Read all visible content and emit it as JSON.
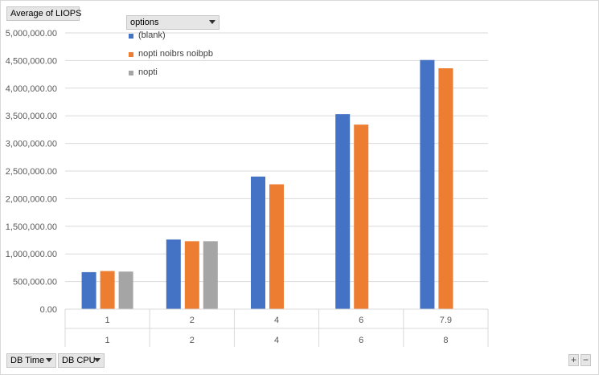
{
  "field_buttons": {
    "value_field": "Average of LIOPS",
    "legend_field": "options",
    "axis_fields": [
      "DB Time",
      "DB CPU"
    ]
  },
  "corner_buttons": {
    "expand": "+",
    "collapse": "−"
  },
  "colors": {
    "blank": "#4472c4",
    "nopti_noibrs_noibpb": "#ed7d31",
    "nopti": "#a5a5a5",
    "grid": "#d9d9d9",
    "axis_text": "#595959"
  },
  "chart_data": {
    "type": "bar",
    "title": "",
    "xlabel": "",
    "ylabel": "",
    "ylim": [
      0,
      5000000
    ],
    "y_ticks": [
      "0.00",
      "500,000.00",
      "1,000,000.00",
      "1,500,000.00",
      "2,000,000.00",
      "2,500,000.00",
      "3,000,000.00",
      "3,500,000.00",
      "4,000,000.00",
      "4,500,000.00",
      "5,000,000.00"
    ],
    "categories": [
      "1",
      "2",
      "4",
      "6",
      "7.9"
    ],
    "category_groups": [
      "1",
      "2",
      "4",
      "6",
      "8"
    ],
    "series": [
      {
        "name": "(blank)",
        "color": "#4472c4",
        "values": [
          670000,
          1260000,
          2400000,
          3530000,
          4510000
        ]
      },
      {
        "name": "nopti noibrs noibpb",
        "color": "#ed7d31",
        "values": [
          690000,
          1230000,
          2260000,
          3340000,
          4360000
        ]
      },
      {
        "name": "nopti",
        "color": "#a5a5a5",
        "values": [
          680000,
          1230000,
          null,
          null,
          null
        ]
      }
    ],
    "grid": true,
    "legend_position": "top-left"
  }
}
